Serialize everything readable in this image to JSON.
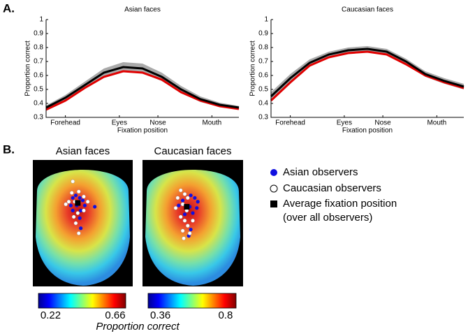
{
  "panels": {
    "a": "A.",
    "b": "B."
  },
  "chart_data": [
    {
      "type": "line",
      "title": "Asian faces",
      "xlabel": "Fixation position",
      "ylabel": "Proportion correct",
      "x": [
        0,
        10,
        20,
        30,
        40,
        50,
        60,
        70,
        80,
        90,
        100
      ],
      "xlim": [
        0,
        100
      ],
      "xticks": [
        {
          "value": 10,
          "label": "Forehead"
        },
        {
          "value": 38,
          "label": "Eyes"
        },
        {
          "value": 58,
          "label": "Nose"
        },
        {
          "value": 86,
          "label": "Mouth"
        }
      ],
      "ylim": [
        0.3,
        1
      ],
      "yticks": [
        0.3,
        0.4,
        0.5,
        0.6,
        0.7,
        0.8,
        0.9,
        1
      ],
      "series": [
        {
          "color": "#000000",
          "band_color": "#aaaaaa",
          "values": [
            0.37,
            0.44,
            0.53,
            0.62,
            0.66,
            0.65,
            0.59,
            0.5,
            0.43,
            0.39,
            0.37
          ],
          "errors": [
            0.015,
            0.02,
            0.025,
            0.03,
            0.035,
            0.035,
            0.03,
            0.025,
            0.02,
            0.015,
            0.012
          ]
        },
        {
          "color": "#e00000",
          "values": [
            0.355,
            0.42,
            0.51,
            0.59,
            0.63,
            0.62,
            0.57,
            0.48,
            0.42,
            0.38,
            0.36
          ]
        }
      ]
    },
    {
      "type": "line",
      "title": "Caucasian faces",
      "xlabel": "Fixation position",
      "ylabel": "Proportion correct",
      "x": [
        0,
        10,
        20,
        30,
        40,
        50,
        60,
        70,
        80,
        90,
        100
      ],
      "xlim": [
        0,
        100
      ],
      "xticks": [
        {
          "value": 10,
          "label": "Forehead"
        },
        {
          "value": 38,
          "label": "Eyes"
        },
        {
          "value": 58,
          "label": "Nose"
        },
        {
          "value": 86,
          "label": "Mouth"
        }
      ],
      "ylim": [
        0.3,
        1
      ],
      "yticks": [
        0.3,
        0.4,
        0.5,
        0.6,
        0.7,
        0.8,
        0.9,
        1
      ],
      "series": [
        {
          "color": "#000000",
          "band_color": "#aaaaaa",
          "values": [
            0.45,
            0.58,
            0.69,
            0.75,
            0.78,
            0.79,
            0.77,
            0.7,
            0.61,
            0.56,
            0.52
          ],
          "errors": [
            0.03,
            0.03,
            0.025,
            0.02,
            0.02,
            0.02,
            0.02,
            0.02,
            0.02,
            0.02,
            0.02
          ]
        },
        {
          "color": "#e00000",
          "values": [
            0.42,
            0.55,
            0.67,
            0.73,
            0.76,
            0.77,
            0.75,
            0.68,
            0.6,
            0.55,
            0.51
          ]
        }
      ]
    },
    {
      "type": "heatmap",
      "title": "Asian faces",
      "xlim": [
        0,
        1
      ],
      "ylim": [
        1,
        0
      ],
      "colorbar_ticks": [
        0.22,
        0.66
      ],
      "series": [
        {
          "color": "#1010e0",
          "x": [
            0.4,
            0.43,
            0.47,
            0.5,
            0.38,
            0.44,
            0.52,
            0.62,
            0.4,
            0.48,
            0.47,
            0.48
          ],
          "y": [
            0.3,
            0.28,
            0.3,
            0.32,
            0.36,
            0.36,
            0.36,
            0.37,
            0.4,
            0.4,
            0.46,
            0.54
          ]
        },
        {
          "color": "#ffffff",
          "x": [
            0.4,
            0.39,
            0.46,
            0.36,
            0.42,
            0.51,
            0.55,
            0.33,
            0.45,
            0.41,
            0.43,
            0.46,
            0.51
          ],
          "y": [
            0.17,
            0.26,
            0.25,
            0.33,
            0.33,
            0.29,
            0.33,
            0.35,
            0.42,
            0.45,
            0.5,
            0.58,
            0.4
          ]
        },
        {
          "color": "#000000",
          "x": [
            0.45
          ],
          "y": [
            0.34
          ]
        }
      ]
    },
    {
      "type": "heatmap",
      "title": "Caucasian faces",
      "xlim": [
        0,
        1
      ],
      "ylim": [
        1,
        0
      ],
      "colorbar_ticks": [
        0.36,
        0.8
      ],
      "series": [
        {
          "color": "#1010e0",
          "x": [
            0.48,
            0.52,
            0.55,
            0.4,
            0.47,
            0.5,
            0.42,
            0.36,
            0.48,
            0.46,
            0.54
          ],
          "y": [
            0.28,
            0.3,
            0.33,
            0.32,
            0.37,
            0.42,
            0.43,
            0.36,
            0.55,
            0.6,
            0.38
          ]
        },
        {
          "color": "#ffffff",
          "x": [
            0.38,
            0.42,
            0.45,
            0.35,
            0.4,
            0.33,
            0.44,
            0.38,
            0.42,
            0.45,
            0.4,
            0.47,
            0.5,
            0.41
          ],
          "y": [
            0.24,
            0.27,
            0.3,
            0.3,
            0.35,
            0.38,
            0.4,
            0.45,
            0.48,
            0.52,
            0.56,
            0.58,
            0.48,
            0.62
          ]
        },
        {
          "color": "#000000",
          "x": [
            0.44
          ],
          "y": [
            0.37
          ]
        }
      ]
    }
  ],
  "legend": [
    {
      "name": "Asian observers",
      "color": "#1010e0"
    },
    {
      "name": "Caucasian observers",
      "color": "#ffffff"
    },
    {
      "name": "Average fixation position",
      "note": "(over all observers)",
      "color": "#000000"
    }
  ],
  "colorbar_label": "Proportion correct"
}
